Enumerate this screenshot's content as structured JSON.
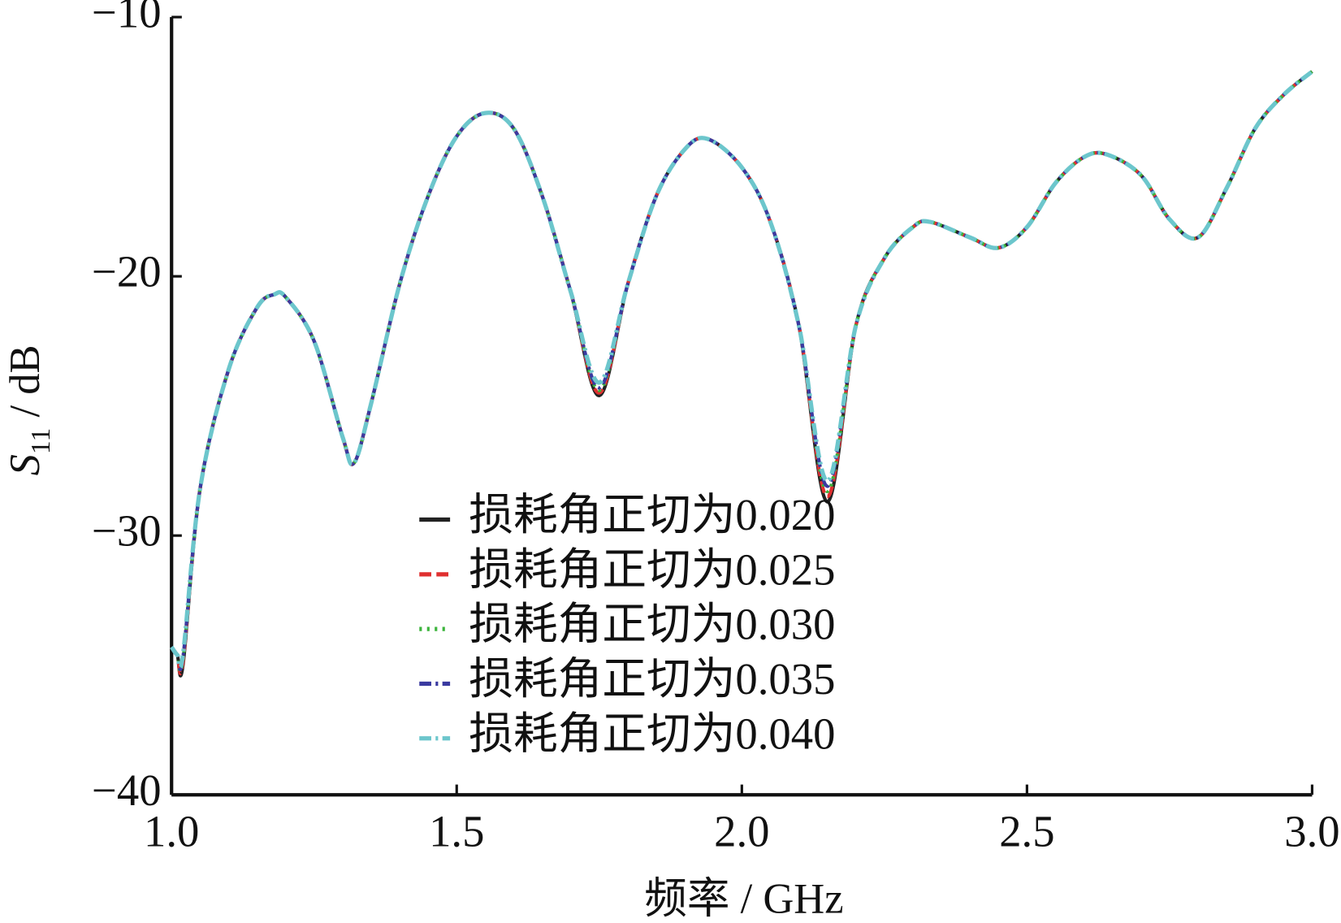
{
  "chart_data": {
    "type": "line",
    "xlabel": "频率 / GHz",
    "ylabel_parts": [
      "S",
      "11",
      " / dB"
    ],
    "x": [
      1.0,
      1.01,
      1.02,
      1.05,
      1.1,
      1.15,
      1.18,
      1.2,
      1.25,
      1.3,
      1.32,
      1.35,
      1.4,
      1.45,
      1.5,
      1.55,
      1.6,
      1.65,
      1.7,
      1.75,
      1.8,
      1.85,
      1.9,
      1.94,
      2.0,
      2.05,
      2.1,
      2.15,
      2.2,
      2.25,
      2.3,
      2.33,
      2.4,
      2.45,
      2.5,
      2.55,
      2.6,
      2.64,
      2.7,
      2.75,
      2.8,
      2.85,
      2.9,
      2.95,
      3.0
    ],
    "series": [
      {
        "name": "损耗角正切为0.020",
        "color": "#222222",
        "dash": "solid",
        "values": [
          -34.3,
          -34.6,
          -35.0,
          -28.2,
          -23.6,
          -21.2,
          -20.7,
          -20.8,
          -22.5,
          -26.2,
          -27.2,
          -24.9,
          -20.3,
          -16.9,
          -14.6,
          -13.7,
          -14.3,
          -16.9,
          -20.6,
          -24.6,
          -20.3,
          -16.9,
          -15.1,
          -14.7,
          -15.8,
          -17.9,
          -21.9,
          -28.7,
          -21.9,
          -19.3,
          -18.1,
          -17.9,
          -18.5,
          -18.9,
          -18.1,
          -16.4,
          -15.4,
          -15.3,
          -16.1,
          -17.8,
          -18.5,
          -16.6,
          -14.3,
          -13.0,
          -12.1
        ]
      },
      {
        "name": "损耗角正切为0.025",
        "color": "#e03030",
        "dash": "dash",
        "values": [
          -34.3,
          -34.6,
          -34.9,
          -28.2,
          -23.6,
          -21.2,
          -20.7,
          -20.8,
          -22.5,
          -26.2,
          -27.2,
          -24.9,
          -20.3,
          -16.9,
          -14.6,
          -13.7,
          -14.3,
          -16.9,
          -20.6,
          -24.5,
          -20.3,
          -16.9,
          -15.1,
          -14.7,
          -15.8,
          -17.9,
          -21.9,
          -28.5,
          -21.9,
          -19.3,
          -18.1,
          -17.9,
          -18.5,
          -18.9,
          -18.1,
          -16.4,
          -15.4,
          -15.3,
          -16.1,
          -17.8,
          -18.5,
          -16.6,
          -14.3,
          -13.0,
          -12.1
        ]
      },
      {
        "name": "损耗角正切为0.030",
        "color": "#3cb43c",
        "dash": "dot",
        "values": [
          -34.3,
          -34.6,
          -34.8,
          -28.2,
          -23.6,
          -21.2,
          -20.7,
          -20.8,
          -22.5,
          -26.2,
          -27.2,
          -24.9,
          -20.3,
          -16.9,
          -14.6,
          -13.7,
          -14.3,
          -16.9,
          -20.6,
          -24.4,
          -20.3,
          -16.9,
          -15.1,
          -14.7,
          -15.8,
          -17.9,
          -21.9,
          -28.3,
          -21.9,
          -19.3,
          -18.1,
          -17.9,
          -18.5,
          -18.9,
          -18.1,
          -16.4,
          -15.4,
          -15.3,
          -16.1,
          -17.8,
          -18.5,
          -16.6,
          -14.3,
          -13.0,
          -12.1
        ]
      },
      {
        "name": "损耗角正切为0.035",
        "color": "#3a3aa0",
        "dash": "dashdot",
        "values": [
          -34.3,
          -34.6,
          -34.7,
          -28.2,
          -23.6,
          -21.2,
          -20.7,
          -20.8,
          -22.5,
          -26.2,
          -27.2,
          -24.9,
          -20.3,
          -16.9,
          -14.6,
          -13.7,
          -14.3,
          -16.9,
          -20.6,
          -24.3,
          -20.3,
          -16.9,
          -15.1,
          -14.7,
          -15.8,
          -17.9,
          -21.9,
          -28.1,
          -21.9,
          -19.3,
          -18.1,
          -17.9,
          -18.5,
          -18.9,
          -18.1,
          -16.4,
          -15.4,
          -15.3,
          -16.1,
          -17.8,
          -18.5,
          -16.6,
          -14.3,
          -13.0,
          -12.1
        ]
      },
      {
        "name": "损耗角正切为0.040",
        "color": "#6cc6cc",
        "dash": "dashdot",
        "values": [
          -34.3,
          -34.6,
          -34.6,
          -28.2,
          -23.6,
          -21.2,
          -20.7,
          -20.8,
          -22.5,
          -26.2,
          -27.2,
          -24.9,
          -20.3,
          -16.9,
          -14.6,
          -13.7,
          -14.3,
          -16.9,
          -20.6,
          -24.1,
          -20.3,
          -16.9,
          -15.1,
          -14.7,
          -15.8,
          -17.9,
          -21.9,
          -27.9,
          -21.9,
          -19.3,
          -18.1,
          -17.9,
          -18.5,
          -18.9,
          -18.1,
          -16.4,
          -15.4,
          -15.3,
          -16.1,
          -17.8,
          -18.5,
          -16.6,
          -14.3,
          -13.0,
          -12.1
        ]
      }
    ],
    "xlim": [
      1.0,
      3.0
    ],
    "ylim": [
      -40,
      -10
    ],
    "xticks": [
      {
        "value": 1.0,
        "label": "1.0"
      },
      {
        "value": 1.5,
        "label": "1.5"
      },
      {
        "value": 2.0,
        "label": "2.0"
      },
      {
        "value": 2.5,
        "label": "2.5"
      },
      {
        "value": 3.0,
        "label": "3.0"
      }
    ],
    "yticks": [
      {
        "value": -40,
        "label": "−40"
      },
      {
        "value": -30,
        "label": "−30"
      },
      {
        "value": -20,
        "label": "−20"
      },
      {
        "value": -10,
        "label": "−10"
      }
    ],
    "grid": false,
    "legend": "lower center"
  }
}
